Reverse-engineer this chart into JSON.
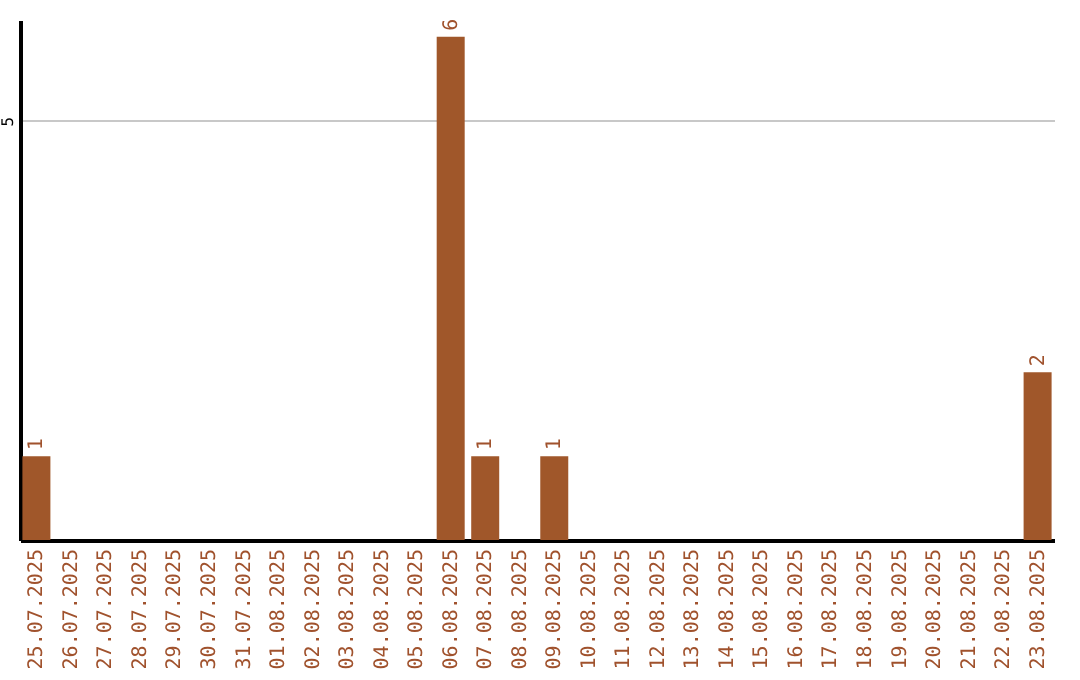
{
  "chart_data": {
    "type": "bar",
    "categories": [
      "25.07.2025",
      "26.07.2025",
      "27.07.2025",
      "28.07.2025",
      "29.07.2025",
      "30.07.2025",
      "31.07.2025",
      "01.08.2025",
      "02.08.2025",
      "03.08.2025",
      "04.08.2025",
      "05.08.2025",
      "06.08.2025",
      "07.08.2025",
      "08.08.2025",
      "09.08.2025",
      "10.08.2025",
      "11.08.2025",
      "12.08.2025",
      "13.08.2025",
      "14.08.2025",
      "15.08.2025",
      "16.08.2025",
      "17.08.2025",
      "18.08.2025",
      "19.08.2025",
      "20.08.2025",
      "21.08.2025",
      "22.08.2025",
      "23.08.2025"
    ],
    "values": [
      1,
      0,
      0,
      0,
      0,
      0,
      0,
      0,
      0,
      0,
      0,
      0,
      6,
      1,
      0,
      1,
      0,
      0,
      0,
      0,
      0,
      0,
      0,
      0,
      0,
      0,
      0,
      0,
      0,
      2
    ],
    "value_labels": [
      "1",
      null,
      null,
      null,
      null,
      null,
      null,
      null,
      null,
      null,
      null,
      null,
      "6",
      "1",
      null,
      "1",
      null,
      null,
      null,
      null,
      null,
      null,
      null,
      null,
      null,
      null,
      null,
      null,
      null,
      "2"
    ],
    "color": "#a0572a",
    "ylim": [
      0,
      6.2
    ],
    "yticks": [
      5
    ],
    "grid": "y"
  }
}
